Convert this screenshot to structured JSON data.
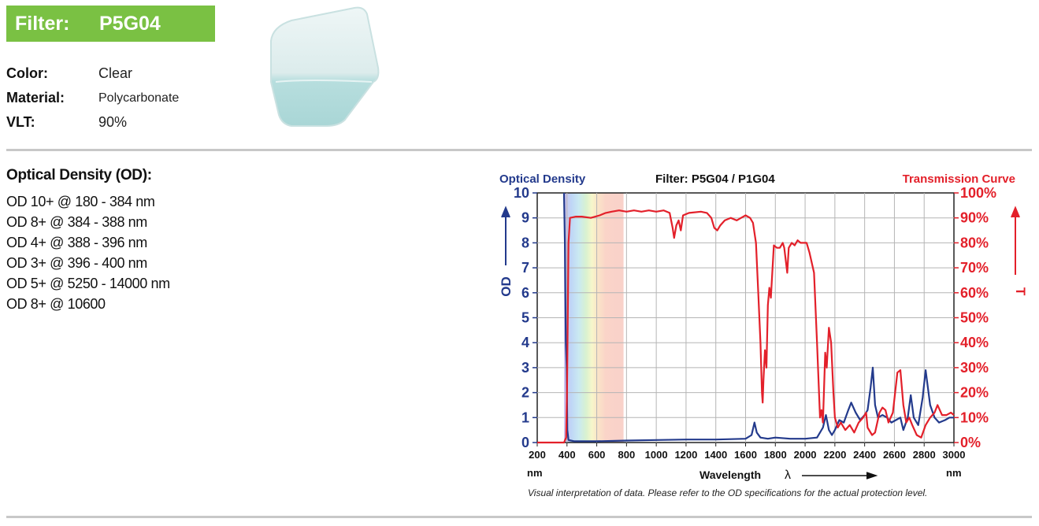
{
  "header": {
    "label": "Filter:",
    "filter_name": "P5G04"
  },
  "properties": [
    {
      "key": "Color:",
      "value": "Clear"
    },
    {
      "key": "Material:",
      "value": "Polycarbonate"
    },
    {
      "key": "VLT:",
      "value": "90%"
    }
  ],
  "od_section": {
    "title": "Optical Density (OD):",
    "items": [
      "OD 10+ @ 180 - 384 nm",
      "OD 8+ @ 384 - 388 nm",
      "OD 4+ @ 388 - 396 nm",
      "OD 3+ @ 396 - 400 nm",
      "OD 5+ @ 5250 - 14000 nm",
      "OD 8+ @ 10600"
    ]
  },
  "colors": {
    "brand_green": "#7ac143",
    "od_blue": "#233a8c",
    "transmission_red": "#e3202a"
  },
  "chart_data": {
    "type": "line",
    "title": "Filter: P5G04 / P1G04",
    "left_title": "Optical Density",
    "right_title": "Transmission Curve",
    "ylabel_left": "OD",
    "ylabel_right": "T",
    "xlabel": "Wavelength",
    "xlabel_symbol": "λ",
    "x_unit": "nm",
    "xlim": [
      200,
      3000
    ],
    "ylim_left": [
      0,
      10
    ],
    "ylim_right": [
      0,
      100
    ],
    "x_ticks": [
      "200",
      "400",
      "600",
      "800",
      "1000",
      "1200",
      "1400",
      "1600",
      "1800",
      "2000",
      "2200",
      "2400",
      "2600",
      "2800",
      "3000"
    ],
    "y_left_ticks": [
      "0",
      "1",
      "2",
      "3",
      "4",
      "5",
      "6",
      "7",
      "8",
      "9",
      "10"
    ],
    "y_right_ticks": [
      "0%",
      "10%",
      "20%",
      "30%",
      "40%",
      "50%",
      "60%",
      "70%",
      "80%",
      "90%",
      "100%"
    ],
    "grid": true,
    "visible_band_nm": [
      380,
      780
    ],
    "series": [
      {
        "axis": "left",
        "color": "#233a8c",
        "points": [
          [
            380,
            10
          ],
          [
            386,
            8
          ],
          [
            392,
            4
          ],
          [
            398,
            3
          ],
          [
            402,
            0.5
          ],
          [
            410,
            0.1
          ],
          [
            450,
            0.05
          ],
          [
            600,
            0.05
          ],
          [
            800,
            0.08
          ],
          [
            1000,
            0.1
          ],
          [
            1200,
            0.12
          ],
          [
            1400,
            0.12
          ],
          [
            1600,
            0.15
          ],
          [
            1640,
            0.3
          ],
          [
            1660,
            0.8
          ],
          [
            1675,
            0.4
          ],
          [
            1700,
            0.2
          ],
          [
            1750,
            0.15
          ],
          [
            1800,
            0.2
          ],
          [
            1900,
            0.15
          ],
          [
            2000,
            0.15
          ],
          [
            2080,
            0.2
          ],
          [
            2120,
            0.6
          ],
          [
            2140,
            1.1
          ],
          [
            2160,
            0.5
          ],
          [
            2180,
            0.3
          ],
          [
            2200,
            0.5
          ],
          [
            2230,
            0.9
          ],
          [
            2260,
            0.8
          ],
          [
            2290,
            1.3
          ],
          [
            2310,
            1.6
          ],
          [
            2340,
            1.2
          ],
          [
            2370,
            0.9
          ],
          [
            2400,
            1.1
          ],
          [
            2420,
            1.3
          ],
          [
            2440,
            2.2
          ],
          [
            2455,
            3.0
          ],
          [
            2470,
            1.5
          ],
          [
            2490,
            1.0
          ],
          [
            2520,
            1.1
          ],
          [
            2550,
            1.0
          ],
          [
            2580,
            0.8
          ],
          [
            2610,
            0.9
          ],
          [
            2640,
            1.0
          ],
          [
            2660,
            0.5
          ],
          [
            2690,
            1.0
          ],
          [
            2710,
            1.9
          ],
          [
            2730,
            1.0
          ],
          [
            2760,
            0.7
          ],
          [
            2790,
            1.8
          ],
          [
            2810,
            2.9
          ],
          [
            2840,
            1.5
          ],
          [
            2870,
            1.0
          ],
          [
            2900,
            0.8
          ],
          [
            2940,
            0.9
          ],
          [
            2970,
            1.0
          ],
          [
            3000,
            1.0
          ]
        ]
      },
      {
        "axis": "right",
        "color": "#e3202a",
        "points": [
          [
            200,
            0
          ],
          [
            380,
            0
          ],
          [
            394,
            2
          ],
          [
            400,
            20
          ],
          [
            410,
            80
          ],
          [
            420,
            90
          ],
          [
            460,
            90.5
          ],
          [
            500,
            90.5
          ],
          [
            560,
            90
          ],
          [
            620,
            91
          ],
          [
            660,
            92
          ],
          [
            700,
            92.5
          ],
          [
            750,
            93
          ],
          [
            800,
            92.5
          ],
          [
            850,
            93
          ],
          [
            900,
            92.5
          ],
          [
            950,
            93
          ],
          [
            1000,
            92.5
          ],
          [
            1050,
            93
          ],
          [
            1090,
            92
          ],
          [
            1110,
            86
          ],
          [
            1120,
            82
          ],
          [
            1135,
            87
          ],
          [
            1150,
            89
          ],
          [
            1165,
            85
          ],
          [
            1180,
            91
          ],
          [
            1220,
            92
          ],
          [
            1300,
            92.5
          ],
          [
            1340,
            92
          ],
          [
            1370,
            90
          ],
          [
            1390,
            86
          ],
          [
            1410,
            85
          ],
          [
            1430,
            87
          ],
          [
            1460,
            89
          ],
          [
            1500,
            90
          ],
          [
            1540,
            89
          ],
          [
            1570,
            90
          ],
          [
            1600,
            91
          ],
          [
            1630,
            90
          ],
          [
            1650,
            88
          ],
          [
            1670,
            80
          ],
          [
            1685,
            60
          ],
          [
            1700,
            40
          ],
          [
            1710,
            20
          ],
          [
            1715,
            16
          ],
          [
            1720,
            25
          ],
          [
            1730,
            37
          ],
          [
            1740,
            30
          ],
          [
            1750,
            55
          ],
          [
            1760,
            62
          ],
          [
            1770,
            58
          ],
          [
            1790,
            79
          ],
          [
            1810,
            78
          ],
          [
            1830,
            78
          ],
          [
            1850,
            80
          ],
          [
            1860,
            78
          ],
          [
            1880,
            68
          ],
          [
            1890,
            78
          ],
          [
            1910,
            80
          ],
          [
            1930,
            79
          ],
          [
            1950,
            81
          ],
          [
            1970,
            80
          ],
          [
            1990,
            80
          ],
          [
            2010,
            80
          ],
          [
            2030,
            76
          ],
          [
            2060,
            68
          ],
          [
            2080,
            40
          ],
          [
            2100,
            10
          ],
          [
            2110,
            13
          ],
          [
            2120,
            8
          ],
          [
            2135,
            36
          ],
          [
            2145,
            30
          ],
          [
            2160,
            46
          ],
          [
            2175,
            40
          ],
          [
            2190,
            20
          ],
          [
            2200,
            10
          ],
          [
            2220,
            6
          ],
          [
            2240,
            8
          ],
          [
            2270,
            5
          ],
          [
            2300,
            7
          ],
          [
            2330,
            4
          ],
          [
            2360,
            8
          ],
          [
            2390,
            10
          ],
          [
            2410,
            12
          ],
          [
            2420,
            6
          ],
          [
            2450,
            3
          ],
          [
            2470,
            4
          ],
          [
            2500,
            12
          ],
          [
            2520,
            14
          ],
          [
            2540,
            13
          ],
          [
            2560,
            8
          ],
          [
            2590,
            12
          ],
          [
            2620,
            28
          ],
          [
            2640,
            29
          ],
          [
            2660,
            15
          ],
          [
            2680,
            8
          ],
          [
            2700,
            10
          ],
          [
            2720,
            7
          ],
          [
            2750,
            3
          ],
          [
            2780,
            2
          ],
          [
            2810,
            7
          ],
          [
            2840,
            10
          ],
          [
            2870,
            12
          ],
          [
            2890,
            15
          ],
          [
            2920,
            11
          ],
          [
            2950,
            11
          ],
          [
            2980,
            12
          ],
          [
            3000,
            11
          ]
        ]
      }
    ]
  },
  "chart_caption": "Visual interpretation of data. Please refer to the OD specifications for the actual protection level."
}
